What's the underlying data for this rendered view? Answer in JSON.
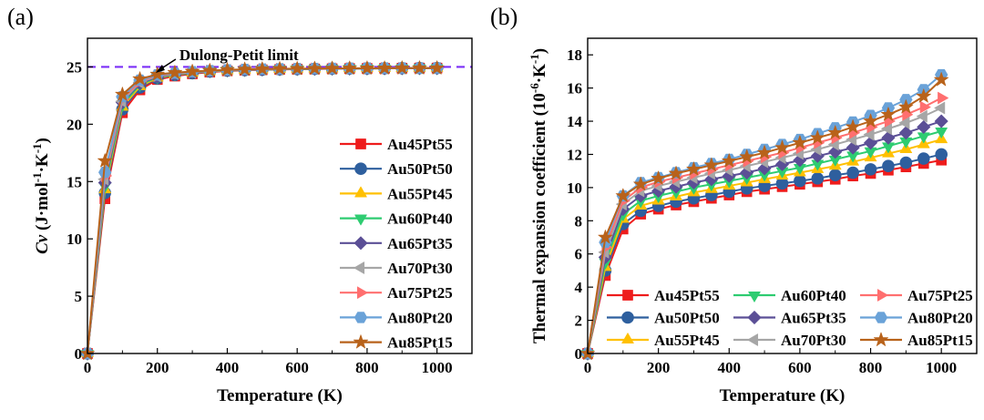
{
  "chart_data": [
    {
      "panel_label": "(a)",
      "type": "line",
      "xlabel": "Temperature (K)",
      "ylabel_parts": [
        "Cv",
        " (J·mol",
        "-1",
        "·K",
        "-1",
        ")"
      ],
      "xlim": [
        0,
        1100
      ],
      "ylim": [
        0,
        27.5
      ],
      "xticks": [
        0,
        200,
        400,
        600,
        800,
        1000
      ],
      "yticks": [
        0,
        5,
        10,
        15,
        20,
        25
      ],
      "reference_line": {
        "y": 25,
        "color": "#7b2ff7",
        "style": "dashed"
      },
      "annotation": {
        "text": "Dulong-Petit limit",
        "x": 190,
        "y": 24.4
      },
      "legend_position": "right",
      "x": [
        0,
        50,
        100,
        150,
        200,
        250,
        300,
        350,
        400,
        450,
        500,
        550,
        600,
        650,
        700,
        750,
        800,
        850,
        900,
        950,
        1000
      ],
      "series": [
        {
          "name": "Au45Pt55",
          "color": "#ee1c1c",
          "marker": "square",
          "values": [
            0,
            13.5,
            21.0,
            23.0,
            23.9,
            24.2,
            24.4,
            24.55,
            24.65,
            24.7,
            24.75,
            24.78,
            24.8,
            24.82,
            24.84,
            24.86,
            24.87,
            24.88,
            24.89,
            24.9,
            24.9
          ]
        },
        {
          "name": "Au50Pt50",
          "color": "#2e5f9e",
          "marker": "circle",
          "values": [
            0,
            14.0,
            21.3,
            23.2,
            24.0,
            24.3,
            24.45,
            24.6,
            24.68,
            24.72,
            24.76,
            24.79,
            24.81,
            24.83,
            24.85,
            24.86,
            24.87,
            24.88,
            24.89,
            24.9,
            24.9
          ]
        },
        {
          "name": "Au55Pt45",
          "color": "#ffc000",
          "marker": "triangle-up",
          "values": [
            0,
            14.3,
            21.5,
            23.3,
            24.05,
            24.32,
            24.48,
            24.62,
            24.69,
            24.73,
            24.77,
            24.8,
            24.82,
            24.84,
            24.85,
            24.86,
            24.87,
            24.88,
            24.89,
            24.9,
            24.9
          ]
        },
        {
          "name": "Au60Pt40",
          "color": "#2ecc71",
          "marker": "triangle-down",
          "values": [
            0,
            14.6,
            21.7,
            23.45,
            24.1,
            24.35,
            24.5,
            24.63,
            24.7,
            24.74,
            24.78,
            24.8,
            24.82,
            24.84,
            24.85,
            24.86,
            24.87,
            24.88,
            24.89,
            24.9,
            24.9
          ]
        },
        {
          "name": "Au65Pt35",
          "color": "#5b4f96",
          "marker": "diamond",
          "values": [
            0,
            14.9,
            21.9,
            23.55,
            24.15,
            24.38,
            24.52,
            24.64,
            24.71,
            24.75,
            24.78,
            24.81,
            24.83,
            24.84,
            24.85,
            24.86,
            24.87,
            24.88,
            24.89,
            24.9,
            24.9
          ]
        },
        {
          "name": "Au70Pt30",
          "color": "#a6a6a6",
          "marker": "triangle-left",
          "values": [
            0,
            15.2,
            22.0,
            23.65,
            24.2,
            24.4,
            24.54,
            24.65,
            24.72,
            24.76,
            24.79,
            24.81,
            24.83,
            24.84,
            24.86,
            24.87,
            24.88,
            24.89,
            24.89,
            24.9,
            24.9
          ]
        },
        {
          "name": "Au75Pt25",
          "color": "#ff6f6f",
          "marker": "triangle-right",
          "values": [
            0,
            15.5,
            22.2,
            23.75,
            24.25,
            24.43,
            24.56,
            24.66,
            24.73,
            24.77,
            24.8,
            24.82,
            24.84,
            24.85,
            24.86,
            24.87,
            24.88,
            24.89,
            24.9,
            24.9,
            24.9
          ]
        },
        {
          "name": "Au80Pt20",
          "color": "#6aa2d8",
          "marker": "hexagon",
          "values": [
            0,
            15.8,
            22.4,
            23.85,
            24.3,
            24.46,
            24.58,
            24.67,
            24.74,
            24.78,
            24.81,
            24.83,
            24.84,
            24.85,
            24.86,
            24.87,
            24.88,
            24.89,
            24.9,
            24.9,
            24.9
          ]
        },
        {
          "name": "Au85Pt15",
          "color": "#b8621a",
          "marker": "star",
          "values": [
            0,
            16.8,
            22.6,
            23.95,
            24.35,
            24.5,
            24.6,
            24.68,
            24.75,
            24.79,
            24.82,
            24.84,
            24.85,
            24.86,
            24.87,
            24.88,
            24.89,
            24.89,
            24.9,
            24.9,
            24.9
          ]
        }
      ]
    },
    {
      "panel_label": "(b)",
      "type": "line",
      "xlabel": "Temperature (K)",
      "ylabel_parts": [
        "Thermal expansion coefficient (10",
        "-6",
        "·K",
        "-1",
        ")"
      ],
      "xlim": [
        0,
        1100
      ],
      "ylim": [
        0,
        19
      ],
      "xticks": [
        0,
        200,
        400,
        600,
        800,
        1000
      ],
      "yticks": [
        0,
        2,
        4,
        6,
        8,
        10,
        12,
        14,
        16,
        18
      ],
      "legend_position": "bottom",
      "x": [
        0,
        50,
        100,
        150,
        200,
        250,
        300,
        350,
        400,
        450,
        500,
        550,
        600,
        650,
        700,
        750,
        800,
        850,
        900,
        950,
        1000
      ],
      "series": [
        {
          "name": "Au45Pt55",
          "color": "#ee1c1c",
          "marker": "square",
          "values": [
            0,
            4.7,
            7.5,
            8.4,
            8.7,
            8.95,
            9.15,
            9.35,
            9.55,
            9.75,
            9.9,
            10.05,
            10.2,
            10.35,
            10.5,
            10.7,
            10.85,
            11.05,
            11.25,
            11.45,
            11.65
          ]
        },
        {
          "name": "Au50Pt50",
          "color": "#2e5f9e",
          "marker": "circle",
          "values": [
            0,
            5.0,
            7.8,
            8.6,
            8.9,
            9.15,
            9.35,
            9.55,
            9.75,
            9.95,
            10.1,
            10.25,
            10.4,
            10.55,
            10.75,
            10.9,
            11.1,
            11.3,
            11.5,
            11.75,
            12.0
          ]
        },
        {
          "name": "Au55Pt45",
          "color": "#ffc000",
          "marker": "triangle-up",
          "values": [
            0,
            5.2,
            8.1,
            8.9,
            9.2,
            9.45,
            9.7,
            9.9,
            10.1,
            10.3,
            10.5,
            10.7,
            10.9,
            11.1,
            11.3,
            11.55,
            11.8,
            12.05,
            12.3,
            12.6,
            12.9
          ]
        },
        {
          "name": "Au60Pt40",
          "color": "#2ecc71",
          "marker": "triangle-down",
          "values": [
            0,
            5.5,
            8.4,
            9.2,
            9.5,
            9.75,
            10.0,
            10.2,
            10.4,
            10.6,
            10.8,
            11.0,
            11.2,
            11.45,
            11.7,
            11.95,
            12.2,
            12.5,
            12.8,
            13.1,
            13.4
          ]
        },
        {
          "name": "Au65Pt35",
          "color": "#5b4f96",
          "marker": "diamond",
          "values": [
            0,
            5.8,
            8.7,
            9.5,
            9.8,
            10.05,
            10.3,
            10.5,
            10.7,
            10.9,
            11.15,
            11.4,
            11.65,
            11.9,
            12.15,
            12.4,
            12.7,
            13.0,
            13.3,
            13.65,
            14.0
          ]
        },
        {
          "name": "Au70Pt30",
          "color": "#a6a6a6",
          "marker": "triangle-left",
          "values": [
            0,
            6.1,
            9.0,
            9.8,
            10.1,
            10.35,
            10.6,
            10.85,
            11.05,
            11.3,
            11.55,
            11.8,
            12.05,
            12.3,
            12.6,
            12.9,
            13.2,
            13.55,
            13.9,
            14.3,
            14.8
          ]
        },
        {
          "name": "Au75Pt25",
          "color": "#ff6f6f",
          "marker": "triangle-right",
          "values": [
            0,
            6.4,
            9.2,
            10.0,
            10.35,
            10.6,
            10.85,
            11.1,
            11.35,
            11.6,
            11.85,
            12.1,
            12.4,
            12.7,
            13.0,
            13.3,
            13.65,
            14.0,
            14.4,
            14.85,
            15.4
          ]
        },
        {
          "name": "Au80Pt20",
          "color": "#6aa2d8",
          "marker": "hexagon",
          "values": [
            0,
            6.7,
            9.5,
            10.3,
            10.6,
            10.9,
            11.2,
            11.45,
            11.7,
            12.0,
            12.3,
            12.6,
            12.9,
            13.25,
            13.6,
            13.95,
            14.35,
            14.8,
            15.3,
            15.9,
            16.8
          ]
        },
        {
          "name": "Au85Pt15",
          "color": "#b8621a",
          "marker": "star",
          "values": [
            0,
            7.0,
            9.5,
            10.2,
            10.55,
            10.85,
            11.1,
            11.35,
            11.6,
            11.85,
            12.1,
            12.4,
            12.7,
            13.0,
            13.3,
            13.65,
            14.0,
            14.4,
            14.85,
            15.5,
            16.5
          ]
        }
      ]
    }
  ]
}
